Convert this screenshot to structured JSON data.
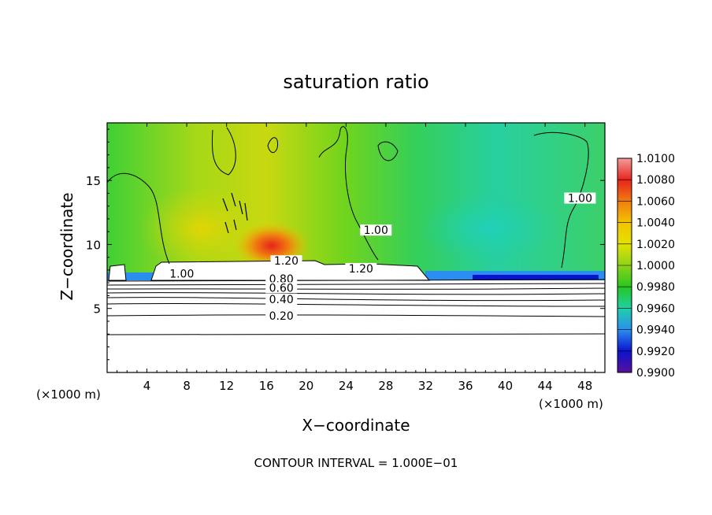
{
  "chart_data": {
    "type": "heatmap",
    "title": "saturation ratio",
    "xlabel": "X−coordinate",
    "ylabel": "Z−coordinate",
    "x_unit_left": "(×1000 m)",
    "x_unit_right": "(×1000 m)",
    "xlim": [
      0,
      50
    ],
    "ylim": [
      0,
      19.5
    ],
    "x_ticks": [
      4,
      8,
      12,
      16,
      20,
      24,
      28,
      32,
      36,
      40,
      44,
      48
    ],
    "y_ticks": [
      5,
      10,
      15
    ],
    "colorbar": {
      "ticks": [
        "1.0100",
        "1.0080",
        "1.0060",
        "1.0040",
        "1.0020",
        "1.0000",
        "0.9980",
        "0.9960",
        "0.9940",
        "0.9920",
        "0.9900"
      ],
      "colors": [
        "#f29c9c",
        "#e8231c",
        "#f07d10",
        "#f3c400",
        "#e4e200",
        "#8cd319",
        "#26c71e",
        "#1fd0a8",
        "#2a8ef0",
        "#0b12d0",
        "#59119a"
      ]
    },
    "contour_labels": [
      {
        "text": "1.00",
        "x": 7.5,
        "z": 7.6
      },
      {
        "text": "1.20",
        "x": 18.0,
        "z": 8.6
      },
      {
        "text": "1.20",
        "x": 25.5,
        "z": 8.0
      },
      {
        "text": "1.00",
        "x": 27.0,
        "z": 11.0
      },
      {
        "text": "1.00",
        "x": 47.5,
        "z": 13.5
      },
      {
        "text": "0.80",
        "x": 17.5,
        "z": 7.2
      },
      {
        "text": "0.60",
        "x": 17.5,
        "z": 6.5
      },
      {
        "text": "0.40",
        "x": 17.5,
        "z": 5.6
      },
      {
        "text": "0.20",
        "x": 17.5,
        "z": 4.3
      }
    ],
    "footer": "CONTOUR INTERVAL = 1.000E−01"
  }
}
